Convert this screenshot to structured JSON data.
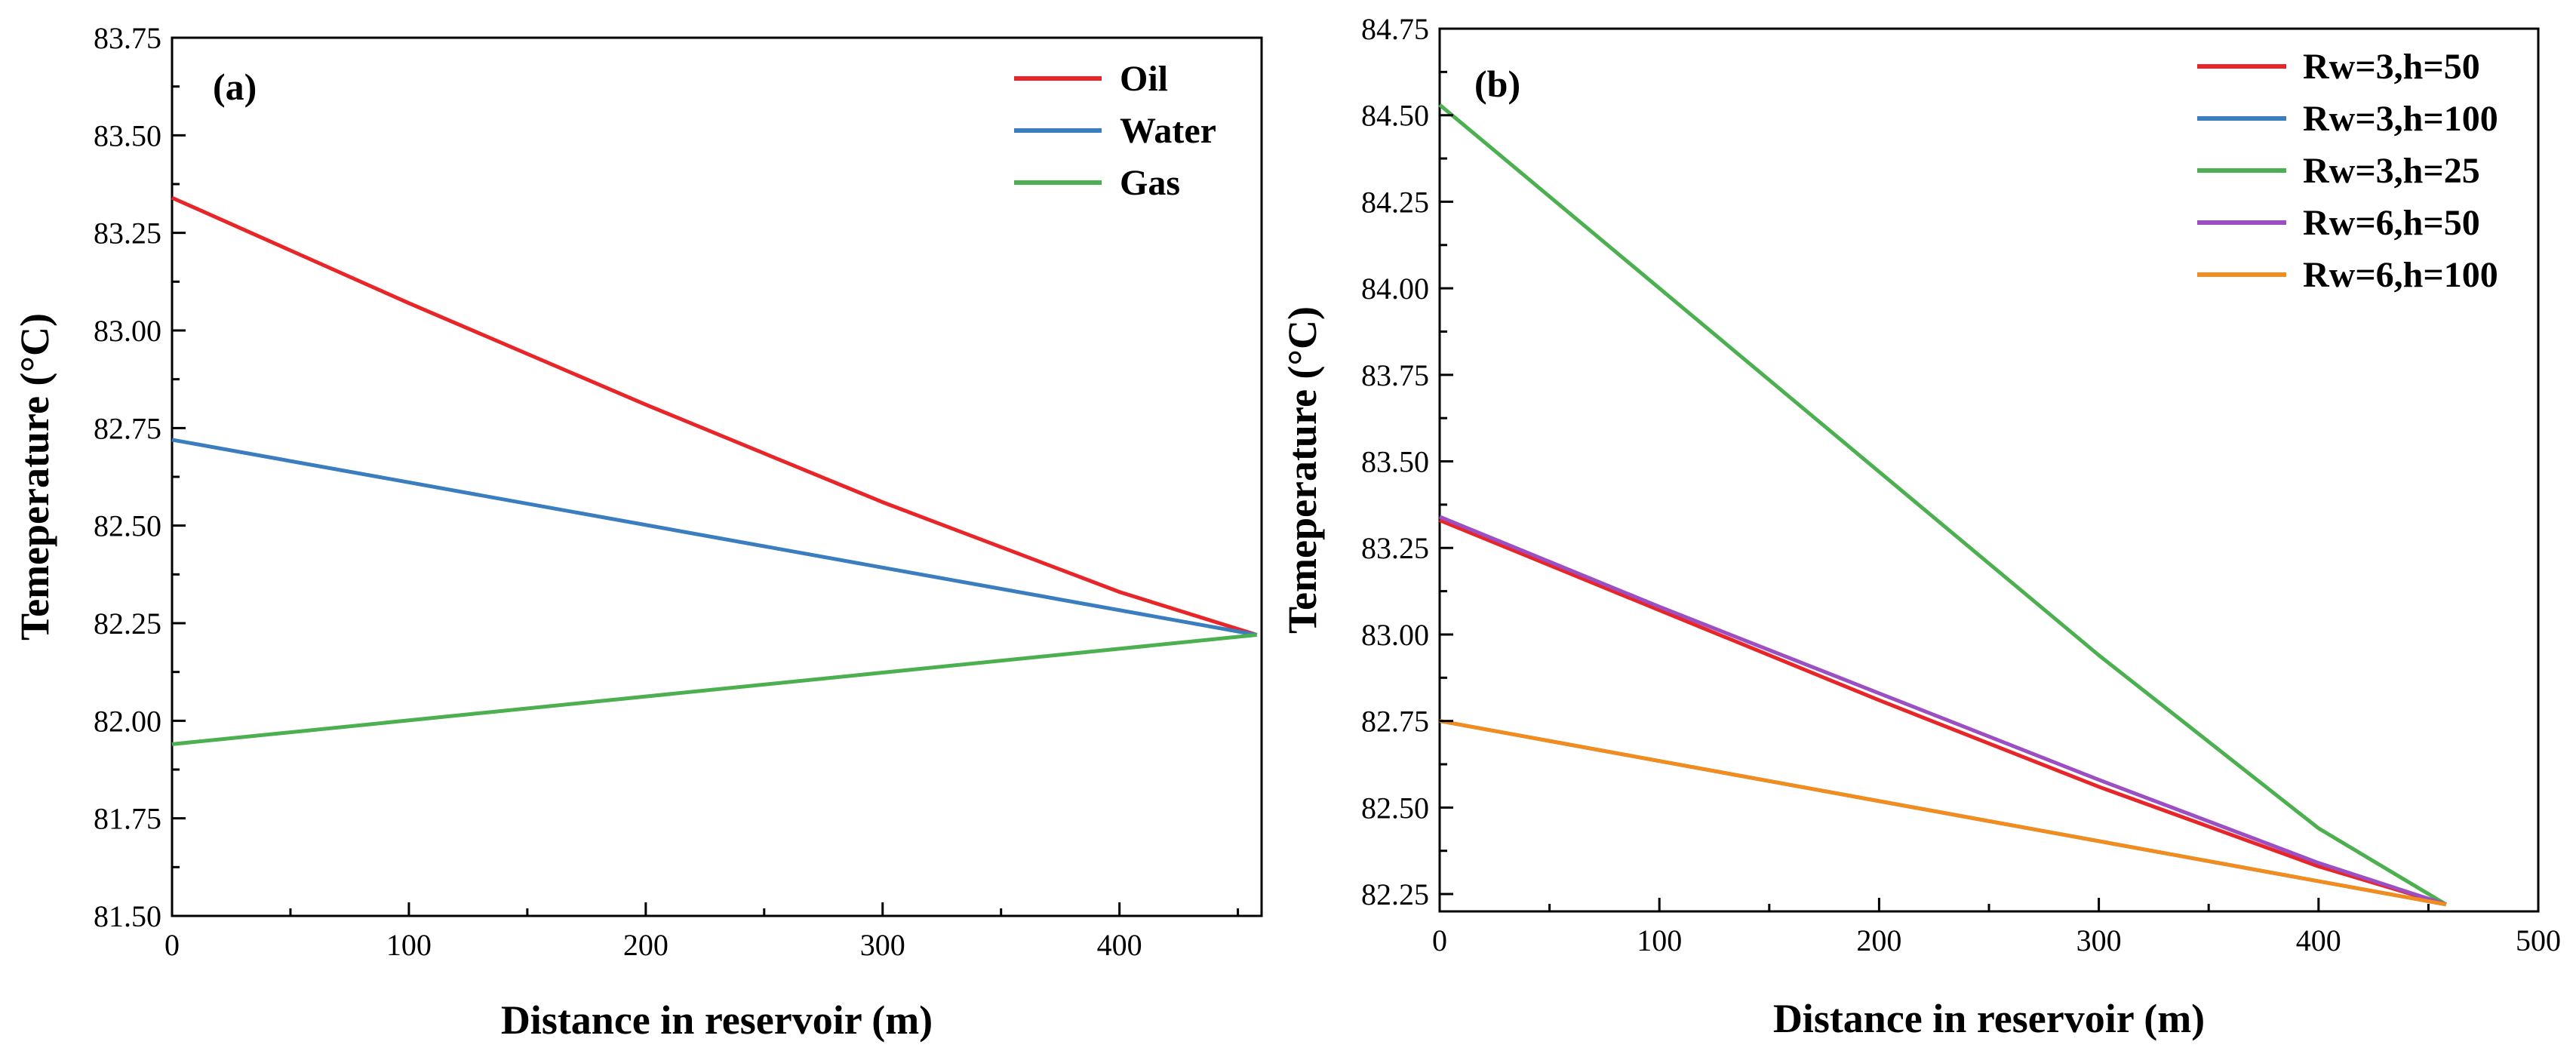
{
  "chart_data": [
    {
      "type": "line",
      "panel_label": "(a)",
      "xlabel": "Distance in reservoir (m)",
      "ylabel": "Temeperature (°C)",
      "xlim": [
        0,
        460
      ],
      "ylim": [
        81.5,
        83.75
      ],
      "xticks": [
        0,
        100,
        200,
        300,
        400
      ],
      "xtick_labels": [
        "0",
        "100",
        "200",
        "300",
        "400"
      ],
      "yticks": [
        81.5,
        81.75,
        82.0,
        82.25,
        82.5,
        82.75,
        83.0,
        83.25,
        83.5,
        83.75
      ],
      "ytick_labels": [
        "81.50",
        "81.75",
        "82.00",
        "82.25",
        "82.50",
        "82.75",
        "83.00",
        "83.25",
        "83.50",
        "83.75"
      ],
      "legend_position": "top-right",
      "series": [
        {
          "name": "Oil",
          "color": "#e8262a",
          "x": [
            0,
            100,
            200,
            300,
            400,
            458
          ],
          "y": [
            83.34,
            83.07,
            82.81,
            82.56,
            82.33,
            82.22
          ]
        },
        {
          "name": "Water",
          "color": "#3a7ebf",
          "x": [
            0,
            458
          ],
          "y": [
            82.72,
            82.22
          ]
        },
        {
          "name": "Gas",
          "color": "#4caf50",
          "x": [
            0,
            458
          ],
          "y": [
            81.94,
            82.22
          ]
        }
      ]
    },
    {
      "type": "line",
      "panel_label": "(b)",
      "xlabel": "Distance in reservoir (m)",
      "ylabel": "Temeperature (°C)",
      "xlim": [
        0,
        500
      ],
      "ylim": [
        82.2,
        84.75
      ],
      "xticks": [
        0,
        100,
        200,
        300,
        400,
        500
      ],
      "xtick_labels": [
        "0",
        "100",
        "200",
        "300",
        "400",
        "500"
      ],
      "yticks": [
        82.25,
        82.5,
        82.75,
        83.0,
        83.25,
        83.5,
        83.75,
        84.0,
        84.25,
        84.5,
        84.75
      ],
      "ytick_labels": [
        "82.25",
        "82.50",
        "82.75",
        "83.00",
        "83.25",
        "83.50",
        "83.75",
        "84.00",
        "84.25",
        "84.50",
        "84.75"
      ],
      "legend_position": "top-right",
      "series": [
        {
          "name": "Rw=3,h=50",
          "color": "#e8262a",
          "x": [
            0,
            100,
            200,
            300,
            400,
            458
          ],
          "y": [
            83.33,
            83.07,
            82.81,
            82.56,
            82.33,
            82.22
          ]
        },
        {
          "name": "Rw=3,h=100",
          "color": "#3a7ebf",
          "x": [
            0,
            458
          ],
          "y": [
            82.75,
            82.22
          ]
        },
        {
          "name": "Rw=3,h=25",
          "color": "#4caf50",
          "x": [
            0,
            100,
            200,
            300,
            400,
            458
          ],
          "y": [
            84.53,
            84.0,
            83.47,
            82.94,
            82.44,
            82.22
          ]
        },
        {
          "name": "Rw=6,h=50",
          "color": "#9b4fc2",
          "x": [
            0,
            100,
            200,
            300,
            400,
            458
          ],
          "y": [
            83.34,
            83.08,
            82.83,
            82.58,
            82.34,
            82.22
          ]
        },
        {
          "name": "Rw=6,h=100",
          "color": "#f28c1c",
          "x": [
            0,
            458
          ],
          "y": [
            82.75,
            82.22
          ]
        }
      ]
    }
  ]
}
